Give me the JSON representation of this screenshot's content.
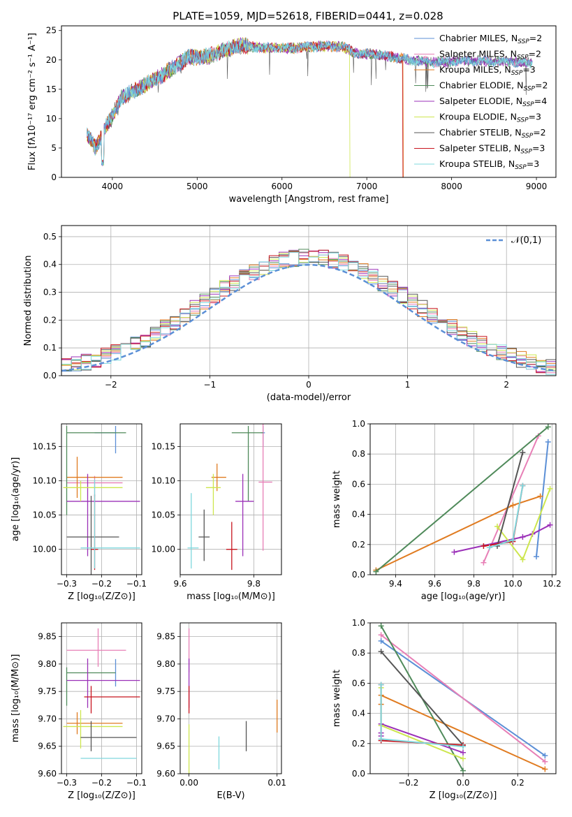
{
  "figure": {
    "title": "PLATE=1059, MJD=52618, FIBERID=0441, z=0.028"
  },
  "colors": {
    "Chabrier MILES": "#5b8fd6",
    "Salpeter MILES": "#e77fb6",
    "Kroupa MILES": "#e07b20",
    "Chabrier ELODIE": "#4f8a5a",
    "Salpeter ELODIE": "#9b30b8",
    "Kroupa ELODIE": "#cde64e",
    "Chabrier STELIB": "#555555",
    "Salpeter STELIB": "#c8141e",
    "Kroupa STELIB": "#7fd8dd"
  },
  "chart_data": [
    {
      "id": "spectrum",
      "type": "line",
      "title": "PLATE=1059, MJD=52618, FIBERID=0441, z=0.028",
      "xlabel": "wavelength [Angstrom, rest frame]",
      "ylabel": "Flux [fλ10⁻¹⁷ erg cm⁻² s⁻¹ A⁻¹]",
      "xlim": [
        3400,
        9230
      ],
      "ylim": [
        0,
        25.8
      ],
      "xticks": [
        4000,
        5000,
        6000,
        7000,
        8000,
        9000
      ],
      "yticks": [
        0,
        5,
        10,
        15,
        20,
        25
      ],
      "grid": false,
      "legend_position": "right",
      "legend": [
        {
          "name": "Chabrier MILES",
          "nssp": 2
        },
        {
          "name": "Salpeter MILES",
          "nssp": 2
        },
        {
          "name": "Kroupa MILES",
          "nssp": 3
        },
        {
          "name": "Chabrier ELODIE",
          "nssp": 2
        },
        {
          "name": "Salpeter ELODIE",
          "nssp": 4
        },
        {
          "name": "Kroupa ELODIE",
          "nssp": 3
        },
        {
          "name": "Chabrier STELIB",
          "nssp": 2
        },
        {
          "name": "Salpeter STELIB",
          "nssp": 3
        },
        {
          "name": "Kroupa STELIB",
          "nssp": 3
        }
      ],
      "continuum": {
        "x": [
          3700,
          3800,
          3900,
          4000,
          4100,
          4300,
          4600,
          4900,
          5100,
          5300,
          5500,
          5800,
          6100,
          6400,
          6700,
          6900,
          7100,
          7300,
          7500,
          7800,
          8100,
          8400,
          8700,
          8900
        ],
        "y": [
          7.5,
          5.0,
          8.0,
          10.5,
          13.5,
          15.0,
          17.5,
          20.5,
          20.5,
          21.5,
          22.5,
          22.0,
          22.0,
          22.3,
          22.3,
          21.0,
          21.0,
          20.5,
          20.0,
          19.6,
          19.8,
          19.8,
          19.7,
          19.5
        ]
      },
      "cutoffs": [
        {
          "model": "Kroupa ELODIE",
          "x": 6800
        },
        {
          "model": "Salpeter STELIB",
          "x": 7420
        },
        {
          "model": "Kroupa MILES",
          "x": 7430
        }
      ]
    },
    {
      "id": "residuals",
      "type": "histogram",
      "xlabel": "(data-model)/error",
      "ylabel": "Normed distribution",
      "xlim": [
        -2.5,
        2.5
      ],
      "ylim": [
        0,
        0.54
      ],
      "xticks": [
        -2,
        -1,
        0,
        1,
        2
      ],
      "yticks": [
        0.0,
        0.1,
        0.2,
        0.3,
        0.4,
        0.5
      ],
      "grid": true,
      "bin_width": 0.1,
      "legend": [
        {
          "name": "𝒩(0,1)",
          "style": "dashed",
          "color": "#5b8fd6"
        }
      ],
      "legend_position": "top-right"
    },
    {
      "id": "age-vs-Z",
      "type": "scatter",
      "xlabel": "Z [log₁₀(Z/Z⊙)]",
      "ylabel": "age  [log₁₀(age/yr)]",
      "xlim": [
        -0.315,
        -0.085
      ],
      "ylim": [
        9.963,
        10.183
      ],
      "xticks": [
        -0.3,
        -0.2,
        -0.1
      ],
      "yticks": [
        10.0,
        10.05,
        10.1,
        10.15
      ],
      "grid": true,
      "points": [
        {
          "model": "Chabrier MILES",
          "x": -0.16,
          "y": 10.17,
          "xerr": [
            0.06,
            0.0
          ],
          "yerr": [
            0.03,
            0.01
          ]
        },
        {
          "model": "Salpeter MILES",
          "x": -0.22,
          "y": 10.097,
          "xerr": [
            0.08,
            0.08
          ],
          "yerr": [
            0.02,
            0.01
          ]
        },
        {
          "model": "Kroupa MILES",
          "x": -0.27,
          "y": 10.105,
          "xerr": [
            0.03,
            0.13
          ],
          "yerr": [
            0.03,
            0.03
          ]
        },
        {
          "model": "Chabrier ELODIE",
          "x": -0.3,
          "y": 10.17,
          "xerr": [
            0.0,
            0.17
          ],
          "yerr": [
            0.12,
            0.01
          ]
        },
        {
          "model": "Salpeter ELODIE",
          "x": -0.24,
          "y": 10.07,
          "xerr": [
            0.06,
            0.15
          ],
          "yerr": [
            0.08,
            0.04
          ]
        },
        {
          "model": "Kroupa ELODIE",
          "x": -0.26,
          "y": 10.09,
          "xerr": [
            0.05,
            0.12
          ],
          "yerr": [
            0.02,
            0.01
          ]
        },
        {
          "model": "Chabrier STELIB",
          "x": -0.23,
          "y": 10.018,
          "xerr": [
            0.07,
            0.08
          ],
          "yerr": [
            0.07,
            0.06
          ]
        },
        {
          "model": "Salpeter STELIB",
          "x": -0.22,
          "y": 10.0,
          "xerr": [
            0.01,
            0.01
          ],
          "yerr": [
            0.03,
            0.08
          ]
        },
        {
          "model": "Kroupa STELIB",
          "x": -0.22,
          "y": 10.002,
          "xerr": [
            0.04,
            0.13
          ],
          "yerr": [
            0.03,
            0.1
          ]
        }
      ]
    },
    {
      "id": "age-vs-mass",
      "type": "scatter",
      "xlabel": "mass [log₁₀(M/M⊙)]",
      "ylabel": "",
      "xlim": [
        9.6,
        9.875
      ],
      "ylim": [
        9.963,
        10.183
      ],
      "xticks": [
        9.6,
        9.8
      ],
      "yticks": [
        10.0,
        10.05,
        10.1,
        10.15
      ],
      "grid": true,
      "points": [
        {
          "model": "Chabrier MILES",
          "x": 9.825,
          "y": 10.17,
          "xerr": [
            0.005,
            0.005
          ],
          "yerr": [
            0.02,
            0.01
          ]
        },
        {
          "model": "Salpeter MILES",
          "x": 9.825,
          "y": 10.098,
          "xerr": [
            0.012,
            0.025
          ],
          "yerr": [
            0.1,
            0.1
          ]
        },
        {
          "model": "Kroupa MILES",
          "x": 9.7,
          "y": 10.105,
          "xerr": [
            0.015,
            0.025
          ],
          "yerr": [
            0.02,
            0.02
          ]
        },
        {
          "model": "Chabrier ELODIE",
          "x": 9.785,
          "y": 10.17,
          "xerr": [
            0.045,
            0.04
          ],
          "yerr": [
            0.1,
            0.01
          ]
        },
        {
          "model": "Salpeter ELODIE",
          "x": 9.77,
          "y": 10.07,
          "xerr": [
            0.02,
            0.03
          ],
          "yerr": [
            0.08,
            0.04
          ]
        },
        {
          "model": "Kroupa ELODIE",
          "x": 9.69,
          "y": 10.09,
          "xerr": [
            0.02,
            0.02
          ],
          "yerr": [
            0.04,
            0.02
          ]
        },
        {
          "model": "Chabrier STELIB",
          "x": 9.665,
          "y": 10.018,
          "xerr": [
            0.015,
            0.015
          ],
          "yerr": [
            0.035,
            0.04
          ]
        },
        {
          "model": "Salpeter STELIB",
          "x": 9.74,
          "y": 10.0,
          "xerr": [
            0.015,
            0.015
          ],
          "yerr": [
            0.03,
            0.04
          ]
        },
        {
          "model": "Kroupa STELIB",
          "x": 9.63,
          "y": 10.002,
          "xerr": [
            0.01,
            0.02
          ],
          "yerr": [
            0.03,
            0.08
          ]
        }
      ]
    },
    {
      "id": "weight-vs-age",
      "type": "line",
      "xlabel": "age  [log₁₀(age/yr)]",
      "ylabel": "mass weight",
      "xlim": [
        9.27,
        10.22
      ],
      "ylim": [
        0,
        1.0
      ],
      "xticks": [
        9.4,
        9.6,
        9.8,
        10.0,
        10.2
      ],
      "yticks": [
        0.0,
        0.2,
        0.4,
        0.6,
        0.8,
        1.0
      ],
      "grid": true,
      "series": [
        {
          "model": "Chabrier MILES",
          "x": [
            10.12,
            10.18
          ],
          "y": [
            0.12,
            0.88
          ]
        },
        {
          "model": "Salpeter MILES",
          "x": [
            9.85,
            10.13
          ],
          "y": [
            0.08,
            0.92
          ]
        },
        {
          "model": "Kroupa MILES",
          "x": [
            9.3,
            10.0,
            10.14
          ],
          "y": [
            0.03,
            0.46,
            0.52
          ]
        },
        {
          "model": "Chabrier ELODIE",
          "x": [
            9.3,
            10.18
          ],
          "y": [
            0.02,
            0.98
          ]
        },
        {
          "model": "Salpeter ELODIE",
          "x": [
            9.7,
            10.05,
            10.1,
            10.19
          ],
          "y": [
            0.15,
            0.25,
            0.27,
            0.33
          ]
        },
        {
          "model": "Kroupa ELODIE",
          "x": [
            9.92,
            10.05,
            10.19
          ],
          "y": [
            0.32,
            0.1,
            0.57
          ]
        },
        {
          "model": "Chabrier STELIB",
          "x": [
            9.92,
            10.05
          ],
          "y": [
            0.19,
            0.81
          ]
        },
        {
          "model": "Salpeter STELIB",
          "x": [
            9.85,
            10.0,
            10.05
          ],
          "y": [
            0.19,
            0.22,
            0.59
          ]
        },
        {
          "model": "Kroupa STELIB",
          "x": [
            9.88,
            10.0,
            10.05
          ],
          "y": [
            0.18,
            0.23,
            0.59
          ]
        }
      ]
    },
    {
      "id": "mass-vs-Z",
      "type": "scatter",
      "xlabel": "Z [log₁₀(Z/Z⊙)]",
      "ylabel": "mass [log₁₀(M/M⊙)]",
      "xlim": [
        -0.315,
        -0.085
      ],
      "ylim": [
        9.6,
        9.875
      ],
      "xticks": [
        -0.3,
        -0.2,
        -0.1
      ],
      "yticks": [
        9.6,
        9.65,
        9.7,
        9.75,
        9.8,
        9.85
      ],
      "grid": true,
      "points": [
        {
          "model": "Chabrier MILES",
          "x": -0.16,
          "y": 9.784,
          "xerr": [
            0.0,
            0.0
          ],
          "yerr": [
            0.025,
            0.025
          ]
        },
        {
          "model": "Salpeter MILES",
          "x": -0.21,
          "y": 9.825,
          "xerr": [
            0.09,
            0.08
          ],
          "yerr": [
            0.03,
            0.04
          ]
        },
        {
          "model": "Kroupa MILES",
          "x": -0.27,
          "y": 9.692,
          "xerr": [
            0.03,
            0.13
          ],
          "yerr": [
            0.02,
            0.02
          ]
        },
        {
          "model": "Chabrier ELODIE",
          "x": -0.3,
          "y": 9.784,
          "xerr": [
            0.0,
            0.14
          ],
          "yerr": [
            0.06,
            0.01
          ]
        },
        {
          "model": "Salpeter ELODIE",
          "x": -0.24,
          "y": 9.77,
          "xerr": [
            0.06,
            0.15
          ],
          "yerr": [
            0.05,
            0.04
          ]
        },
        {
          "model": "Kroupa ELODIE",
          "x": -0.26,
          "y": 9.686,
          "xerr": [
            0.05,
            0.12
          ],
          "yerr": [
            0.04,
            0.03
          ]
        },
        {
          "model": "Chabrier STELIB",
          "x": -0.23,
          "y": 9.666,
          "xerr": [
            0.03,
            0.13
          ],
          "yerr": [
            0.025,
            0.03
          ]
        },
        {
          "model": "Salpeter STELIB",
          "x": -0.23,
          "y": 9.74,
          "xerr": [
            0.02,
            0.14
          ],
          "yerr": [
            0.03,
            0.02
          ]
        },
        {
          "model": "Kroupa STELIB",
          "x": -0.26,
          "y": 9.628,
          "xerr": [
            0.0,
            0.16
          ],
          "yerr": [
            0.0,
            0.0
          ]
        }
      ]
    },
    {
      "id": "mass-vs-EBV",
      "type": "scatter",
      "xlabel": "E(B-V)",
      "ylabel": "",
      "xlim": [
        -0.001,
        0.0105
      ],
      "ylim": [
        9.6,
        9.875
      ],
      "xticks": [
        0.0,
        0.01
      ],
      "yticks": [
        9.6,
        9.65,
        9.7,
        9.75,
        9.8,
        9.85
      ],
      "grid": true,
      "points": [
        {
          "model": "Salpeter MILES",
          "x": 0.0,
          "y": 9.825,
          "xerr": [
            0,
            0
          ],
          "yerr": [
            0.04,
            0.04
          ]
        },
        {
          "model": "Salpeter ELODIE",
          "x": 0.0,
          "y": 9.77,
          "xerr": [
            0,
            0
          ],
          "yerr": [
            0.05,
            0.04
          ]
        },
        {
          "model": "Salpeter STELIB",
          "x": 0.0,
          "y": 9.74,
          "xerr": [
            0,
            0
          ],
          "yerr": [
            0.03,
            0.02
          ]
        },
        {
          "model": "Kroupa ELODIE",
          "x": 0.0,
          "y": 9.64,
          "xerr": [
            0,
            0
          ],
          "yerr": [
            0.05,
            0.05
          ]
        },
        {
          "model": "Kroupa MILES",
          "x": 0.01,
          "y": 9.705,
          "xerr": [
            0,
            0
          ],
          "yerr": [
            0.03,
            0.03
          ]
        },
        {
          "model": "Chabrier STELIB",
          "x": 0.0065,
          "y": 9.666,
          "xerr": [
            0,
            0
          ],
          "yerr": [
            0.025,
            0.03
          ]
        },
        {
          "model": "Kroupa STELIB",
          "x": 0.0034,
          "y": 9.628,
          "xerr": [
            0,
            0
          ],
          "yerr": [
            0.02,
            0.04
          ]
        }
      ]
    },
    {
      "id": "weight-vs-Z",
      "type": "line",
      "xlabel": "Z [log₁₀(Z/Z⊙)]",
      "ylabel": "mass weight",
      "xlim": [
        -0.34,
        0.34
      ],
      "ylim": [
        0,
        1.0
      ],
      "xticks": [
        -0.2,
        0.0,
        0.2
      ],
      "yticks": [
        0.0,
        0.2,
        0.4,
        0.6,
        0.8,
        1.0
      ],
      "grid": true,
      "series": [
        {
          "model": "Chabrier MILES",
          "x": [
            -0.3,
            0.3
          ],
          "y": [
            0.88,
            0.12
          ]
        },
        {
          "model": "Salpeter MILES",
          "x": [
            -0.3,
            0.3
          ],
          "y": [
            0.92,
            0.08
          ]
        },
        {
          "model": "Kroupa MILES",
          "x": [
            -0.3,
            -0.3,
            0.3
          ],
          "y": [
            0.46,
            0.52,
            0.03
          ]
        },
        {
          "model": "Chabrier ELODIE",
          "x": [
            -0.3,
            0.0
          ],
          "y": [
            0.98,
            0.02
          ]
        },
        {
          "model": "Salpeter ELODIE",
          "x": [
            -0.3,
            -0.3,
            -0.3,
            0.0
          ],
          "y": [
            0.25,
            0.27,
            0.33,
            0.14
          ]
        },
        {
          "model": "Kroupa ELODIE",
          "x": [
            -0.3,
            -0.3,
            0.0
          ],
          "y": [
            0.57,
            0.32,
            0.1
          ]
        },
        {
          "model": "Chabrier STELIB",
          "x": [
            -0.3,
            0.0
          ],
          "y": [
            0.81,
            0.19
          ]
        },
        {
          "model": "Salpeter STELIB",
          "x": [
            -0.3,
            -0.3,
            0.0
          ],
          "y": [
            0.59,
            0.22,
            0.19
          ]
        },
        {
          "model": "Kroupa STELIB",
          "x": [
            -0.3,
            -0.3,
            0.0
          ],
          "y": [
            0.59,
            0.23,
            0.18
          ]
        }
      ]
    }
  ]
}
